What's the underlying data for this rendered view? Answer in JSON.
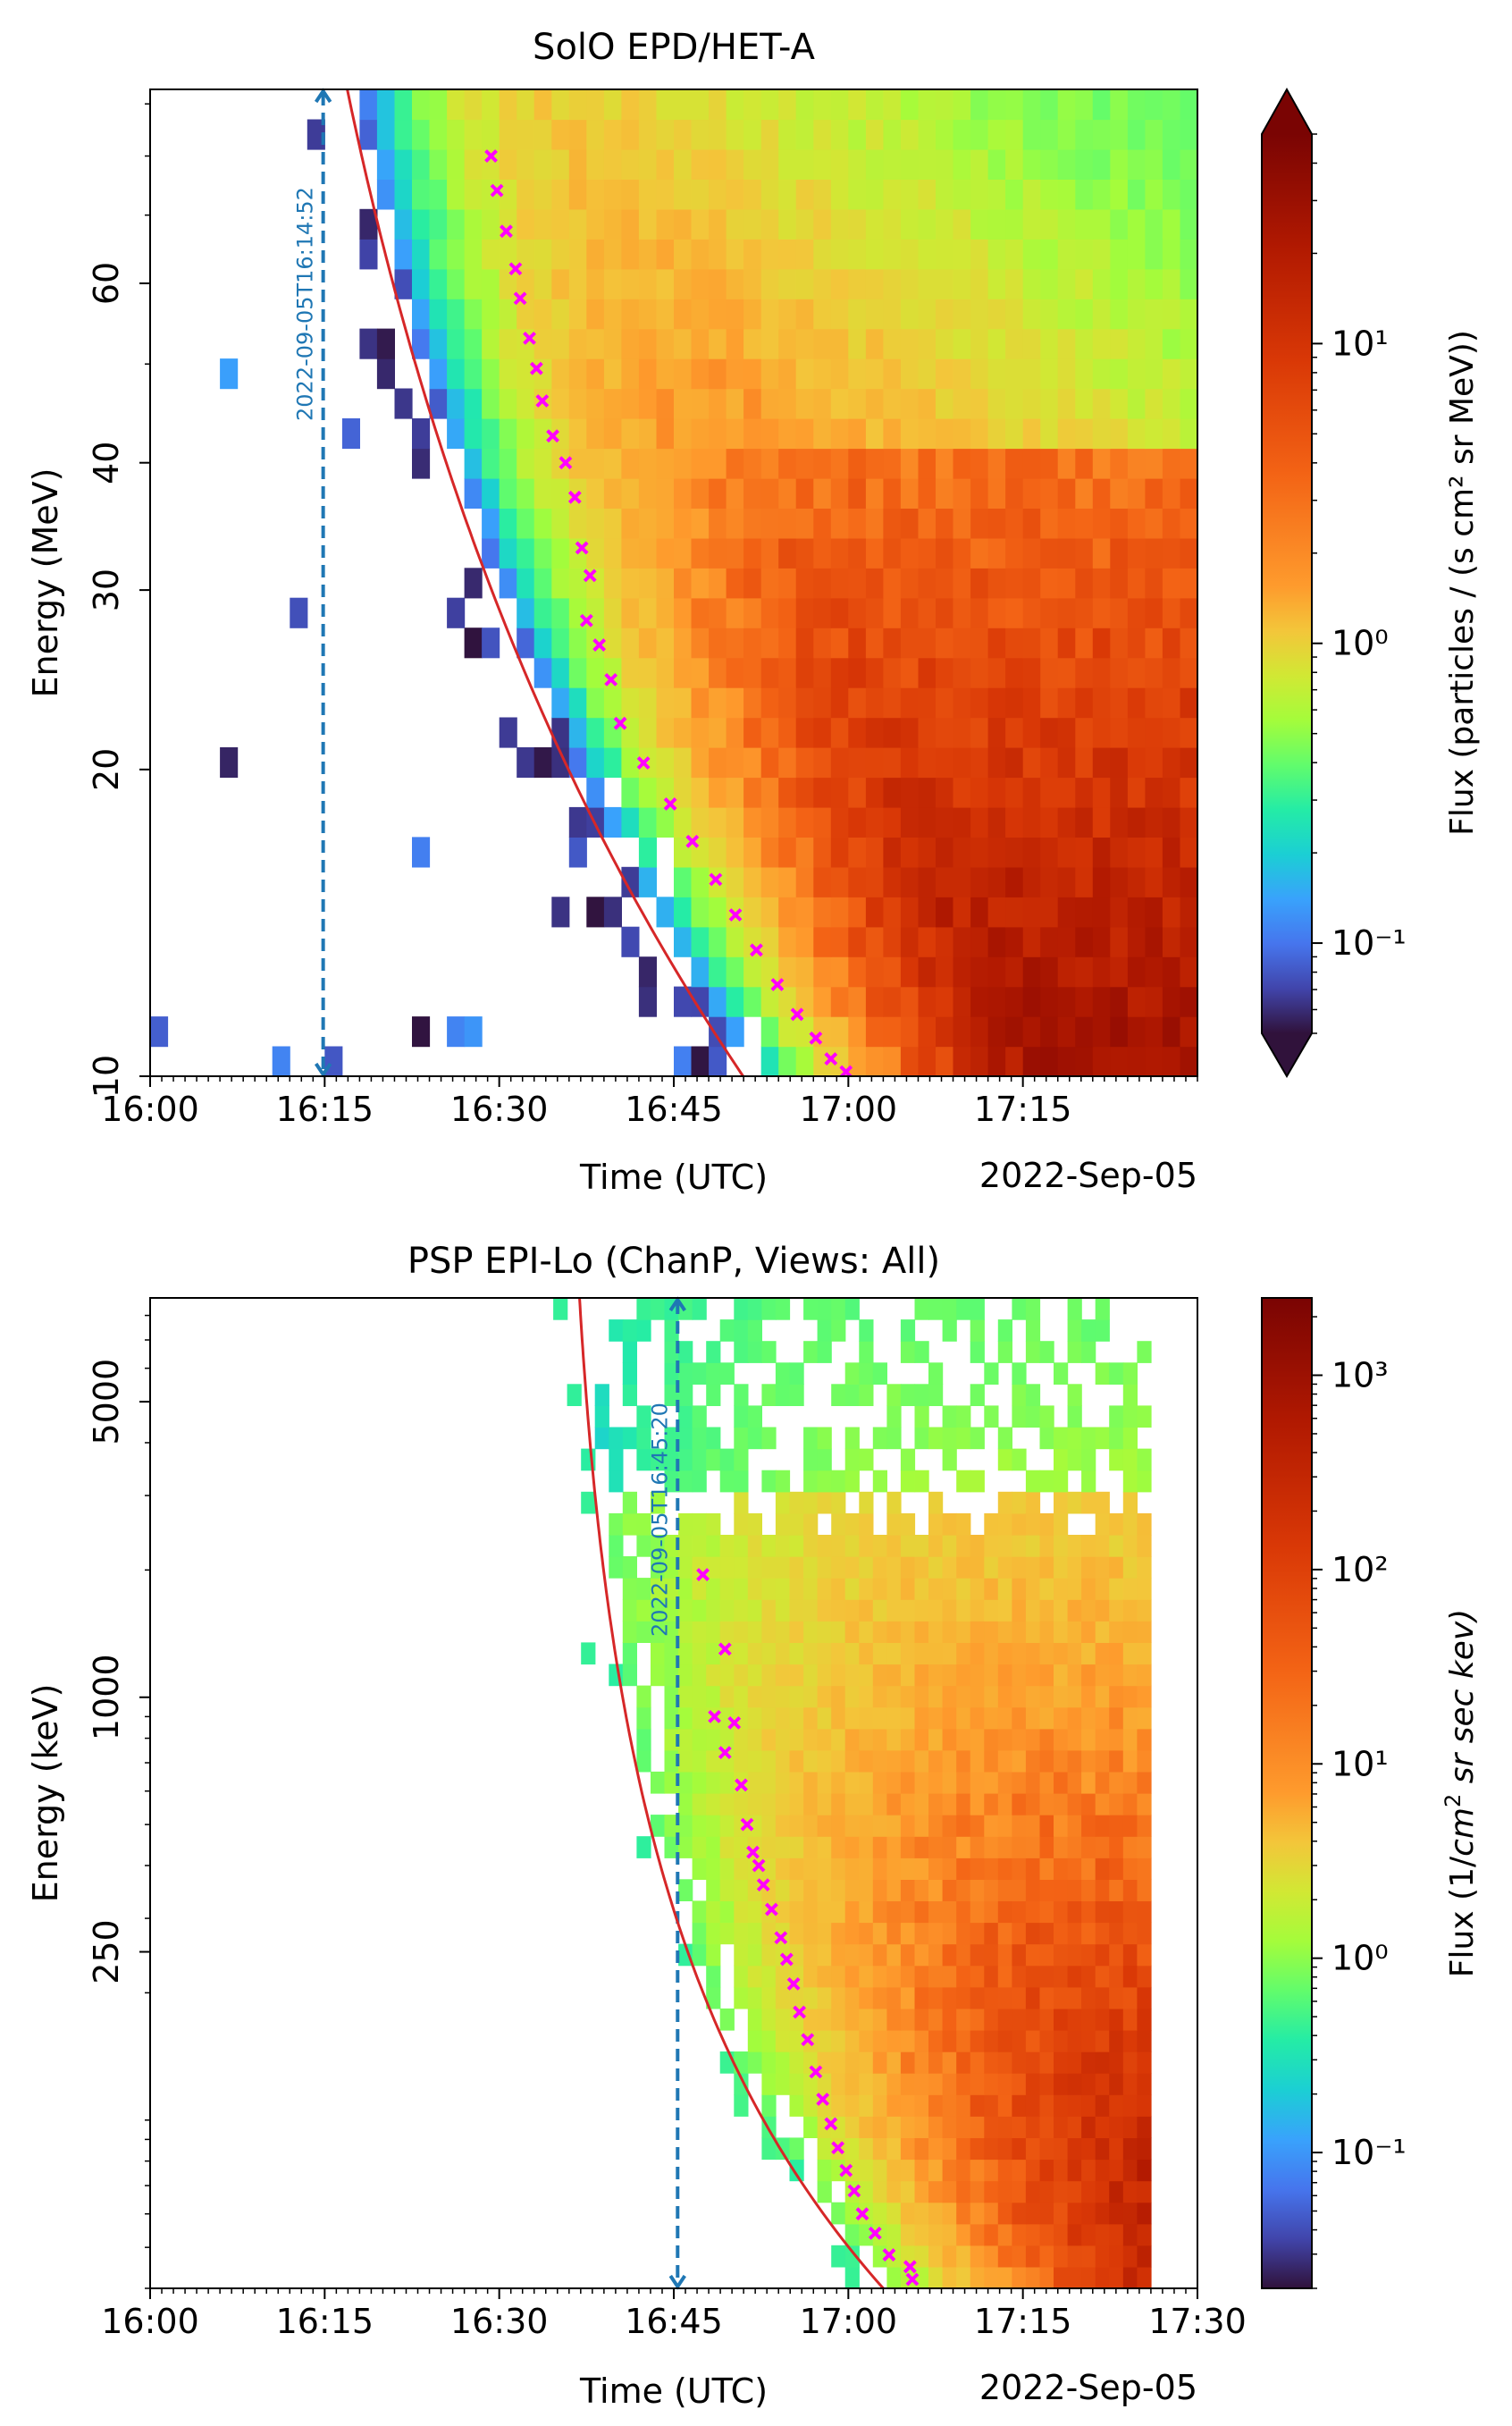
{
  "chart_data": [
    {
      "type": "heatmap",
      "title": "SolO EPD/HET-A",
      "xlabel": "Time (UTC)",
      "ylabel": "Energy (MeV)",
      "date_label": "2022-Sep-05",
      "x_range_min": [
        960,
        1050
      ],
      "x_ticks": [
        960,
        975,
        990,
        1005,
        1020,
        1035
      ],
      "x_tick_labels": [
        "16:00",
        "16:15",
        "16:30",
        "16:45",
        "17:00",
        "17:15"
      ],
      "y_scale": "log",
      "y_range": [
        10,
        93
      ],
      "y_ticks": [
        10,
        20,
        30,
        40,
        60
      ],
      "y_tick_labels": [
        "10",
        "20",
        "30",
        "40",
        "60"
      ],
      "colorbar": {
        "label": "Flux (particles / (s cm² sr MeV))",
        "range": [
          0.05,
          50
        ],
        "extend": "both",
        "ticks": [
          0.1,
          1,
          10
        ],
        "tick_labels": [
          "10⁻¹",
          "10⁰",
          "10¹"
        ]
      },
      "onset_line": {
        "time_min": 974.87,
        "label": "2022-09-05T16:14:52"
      },
      "vda_fit": {
        "t0_min": 967.2,
        "L_au": 0.9
      },
      "onset_points_min": [
        [
          989.3,
          80
        ],
        [
          989.8,
          74
        ],
        [
          990.6,
          67.5
        ],
        [
          991.4,
          62
        ],
        [
          991.8,
          58
        ],
        [
          992.6,
          53
        ],
        [
          993.2,
          49.5
        ],
        [
          993.7,
          46
        ],
        [
          994.6,
          42.5
        ],
        [
          995.7,
          40
        ],
        [
          996.5,
          37
        ],
        [
          997.1,
          33
        ],
        [
          997.8,
          31
        ],
        [
          997.5,
          28
        ],
        [
          998.6,
          26.5
        ],
        [
          999.6,
          24.5
        ],
        [
          1000.4,
          22.2
        ],
        [
          1002.4,
          20.3
        ],
        [
          1004.7,
          18.5
        ],
        [
          1006.6,
          17
        ],
        [
          1008.6,
          15.6
        ],
        [
          1010.3,
          14.4
        ],
        [
          1012.1,
          13.3
        ],
        [
          1013.9,
          12.3
        ],
        [
          1015.6,
          11.5
        ],
        [
          1017.2,
          10.9
        ],
        [
          1018.5,
          10.4
        ],
        [
          1019.8,
          10.1
        ]
      ]
    },
    {
      "type": "heatmap",
      "title": "PSP EPI-Lo (ChanP, Views: All)",
      "xlabel": "Time (UTC)",
      "ylabel": "Energy (keV)",
      "date_label": "2022-Sep-05",
      "x_range_min": [
        960,
        1050
      ],
      "x_ticks": [
        960,
        975,
        990,
        1005,
        1020,
        1035,
        1050
      ],
      "x_tick_labels": [
        "16:00",
        "16:15",
        "16:30",
        "16:45",
        "17:00",
        "17:15",
        "17:30"
      ],
      "y_scale": "log",
      "y_range": [
        40,
        8800
      ],
      "y_ticks": [
        250,
        1000,
        5000
      ],
      "y_tick_labels": [
        "250",
        "1000",
        "5000"
      ],
      "colorbar": {
        "label_main": "Flux (1/",
        "label_cm": "cm",
        "label_exp": "2",
        "label_rest": " sr sec kev)",
        "range": [
          0.02,
          2500
        ],
        "extend": "none",
        "ticks": [
          0.1,
          1,
          10,
          100,
          1000
        ],
        "tick_labels": [
          "10⁻¹",
          "10⁰",
          "10¹",
          "10²",
          "10³"
        ]
      },
      "onset_line": {
        "time_min": 1005.33,
        "label": "2022-09-05T16:45:20"
      },
      "vda_fit": {
        "t0_min": 995.0,
        "L_au": 0.45
      },
      "onset_points_min": [
        [
          1007.5,
          1950
        ],
        [
          1009.4,
          1300
        ],
        [
          1008.5,
          900
        ],
        [
          1010.2,
          870
        ],
        [
          1009.4,
          740
        ],
        [
          1010.8,
          620
        ],
        [
          1011.3,
          500
        ],
        [
          1011.8,
          430
        ],
        [
          1012.3,
          400
        ],
        [
          1012.7,
          360
        ],
        [
          1013.4,
          315
        ],
        [
          1014.2,
          270
        ],
        [
          1014.7,
          240
        ],
        [
          1015.3,
          210
        ],
        [
          1015.8,
          180
        ],
        [
          1016.5,
          155
        ],
        [
          1017.2,
          130
        ],
        [
          1017.8,
          112
        ],
        [
          1018.5,
          98
        ],
        [
          1019.1,
          86
        ],
        [
          1019.8,
          76
        ],
        [
          1020.5,
          68
        ],
        [
          1021.2,
          60
        ],
        [
          1022.3,
          54
        ],
        [
          1023.5,
          48
        ],
        [
          1025.3,
          45
        ],
        [
          1025.5,
          42
        ]
      ]
    }
  ]
}
